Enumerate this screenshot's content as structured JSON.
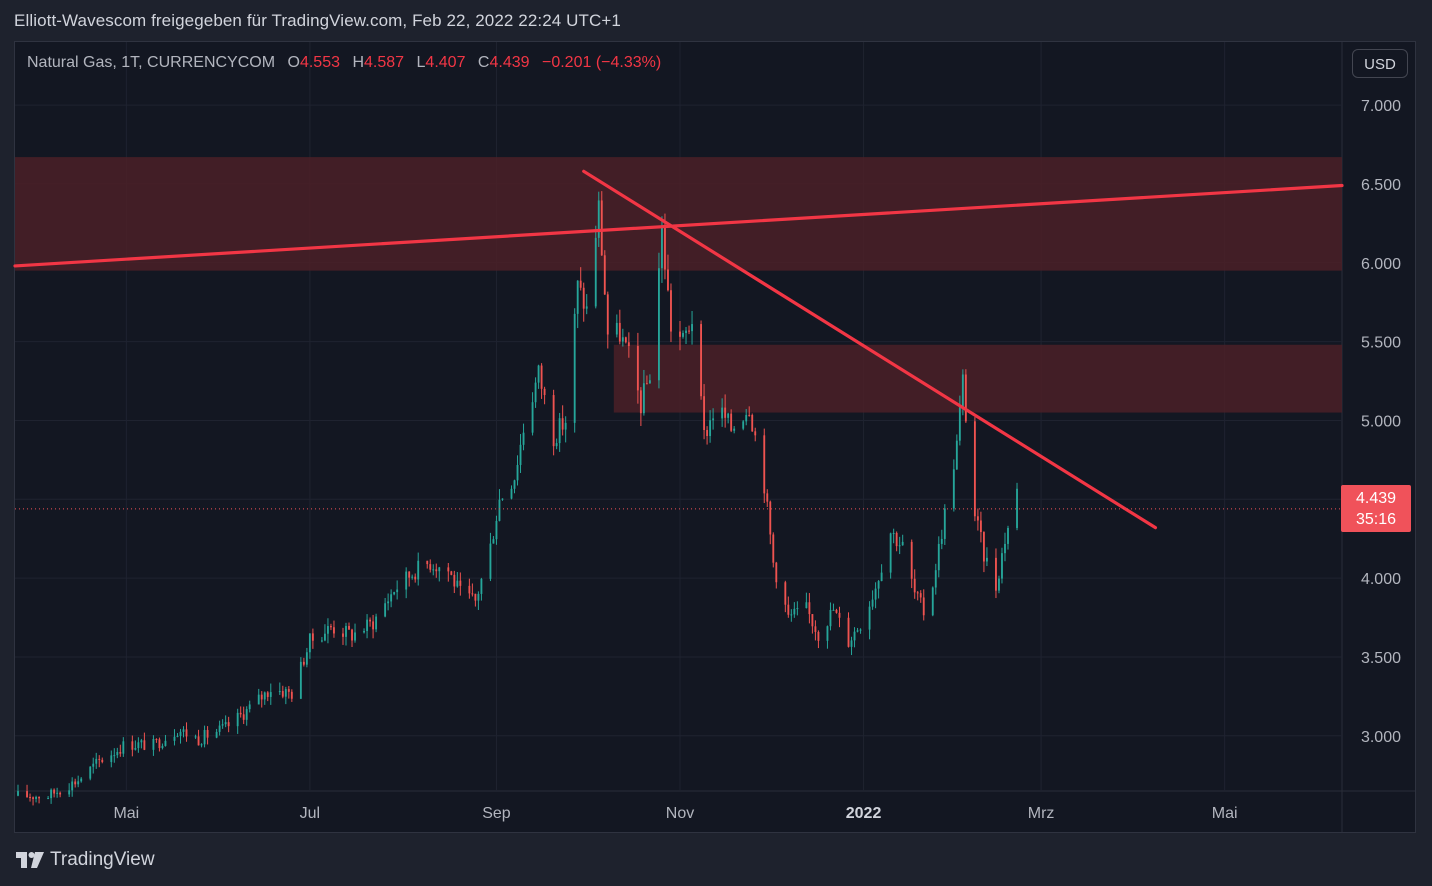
{
  "header": {
    "share_text": "Elliott-Wavescom freigegeben für TradingView.com, Feb 22, 2022 22:24 UTC+1"
  },
  "legend": {
    "symbol": "Natural Gas, 1T, CURRENCYCOM",
    "open_label": "O",
    "open": "4.553",
    "high_label": "H",
    "high": "4.587",
    "low_label": "L",
    "low": "4.407",
    "close_label": "C",
    "close": "4.439",
    "change": "−0.201 (−4.33%)"
  },
  "currency_button": "USD",
  "last_price": {
    "price": "4.439",
    "countdown": "35:16"
  },
  "footer": {
    "brand": "TradingView"
  },
  "colors": {
    "background": "#131722",
    "up": "#26a69a",
    "down": "#ef5350",
    "trendline": "#f23645",
    "zone": "#4b2027"
  },
  "chart_data": {
    "type": "candlestick",
    "y_tick_labels": [
      "7.000",
      "6.500",
      "6.000",
      "5.500",
      "5.000",
      "4.500",
      "4.000",
      "3.500",
      "3.000"
    ],
    "y_ticks": [
      7.0,
      6.5,
      6.0,
      5.5,
      5.0,
      4.5,
      4.0,
      3.5,
      3.0
    ],
    "x_tick_labels": [
      "Mai",
      "Jul",
      "Sep",
      "Nov",
      "2022",
      "Mrz",
      "Mai"
    ],
    "x_tick_dates": [
      "2021-05-01",
      "2021-07-01",
      "2021-09-01",
      "2021-11-01",
      "2022-01-01",
      "2022-03-01",
      "2022-05-01"
    ],
    "x_range": [
      "2021-03-25",
      "2022-06-09"
    ],
    "y_range": [
      2.65,
      7.4
    ],
    "grid": true,
    "last_close": 4.439,
    "zones": [
      {
        "x_start": "2021-03-25",
        "x_end": "2022-06-09",
        "y_low": 5.95,
        "y_high": 6.67
      },
      {
        "x_start": "2021-10-10",
        "x_end": "2022-06-09",
        "y_low": 5.05,
        "y_high": 5.48
      }
    ],
    "trendlines": [
      {
        "from": {
          "date": "2021-03-25",
          "value": 5.98
        },
        "to": {
          "date": "2022-06-09",
          "value": 6.49
        }
      },
      {
        "from": {
          "date": "2021-09-30",
          "value": 6.58
        },
        "to": {
          "date": "2022-04-08",
          "value": 4.32
        }
      }
    ],
    "anchor_closes": [
      [
        "2021-03-26",
        2.62
      ],
      [
        "2021-04-05",
        2.62
      ],
      [
        "2021-04-15",
        2.72
      ],
      [
        "2021-04-22",
        2.84
      ],
      [
        "2021-05-01",
        2.95
      ],
      [
        "2021-05-10",
        2.94
      ],
      [
        "2021-05-18",
        3.04
      ],
      [
        "2021-05-25",
        2.98
      ],
      [
        "2021-06-03",
        3.05
      ],
      [
        "2021-06-10",
        3.16
      ],
      [
        "2021-06-18",
        3.3
      ],
      [
        "2021-06-25",
        3.27
      ],
      [
        "2021-07-01",
        3.6
      ],
      [
        "2021-07-08",
        3.69
      ],
      [
        "2021-07-15",
        3.64
      ],
      [
        "2021-07-22",
        3.72
      ],
      [
        "2021-07-29",
        3.93
      ],
      [
        "2021-08-05",
        4.05
      ],
      [
        "2021-08-10",
        4.1
      ],
      [
        "2021-08-16",
        4.05
      ],
      [
        "2021-08-20",
        3.9
      ],
      [
        "2021-08-25",
        3.85
      ],
      [
        "2021-08-30",
        4.2
      ],
      [
        "2021-09-02",
        4.5
      ],
      [
        "2021-09-07",
        4.65
      ],
      [
        "2021-09-10",
        4.95
      ],
      [
        "2021-09-15",
        5.3
      ],
      [
        "2021-09-20",
        4.9
      ],
      [
        "2021-09-24",
        5.0
      ],
      [
        "2021-09-28",
        5.85
      ],
      [
        "2021-10-01",
        5.7
      ],
      [
        "2021-10-05",
        6.35
      ],
      [
        "2021-10-08",
        5.55
      ],
      [
        "2021-10-12",
        5.55
      ],
      [
        "2021-10-15",
        5.4
      ],
      [
        "2021-10-19",
        5.1
      ],
      [
        "2021-10-22",
        5.3
      ],
      [
        "2021-10-26",
        6.2
      ],
      [
        "2021-10-29",
        5.6
      ],
      [
        "2021-11-02",
        5.5
      ],
      [
        "2021-11-05",
        5.65
      ],
      [
        "2021-11-09",
        4.9
      ],
      [
        "2021-11-13",
        5.1
      ],
      [
        "2021-11-18",
        4.95
      ],
      [
        "2021-11-24",
        5.1
      ],
      [
        "2021-11-29",
        4.6
      ],
      [
        "2021-12-02",
        4.1
      ],
      [
        "2021-12-07",
        3.75
      ],
      [
        "2021-12-13",
        3.8
      ],
      [
        "2021-12-17",
        3.65
      ],
      [
        "2021-12-22",
        3.8
      ],
      [
        "2021-12-27",
        3.6
      ],
      [
        "2022-01-01",
        3.75
      ],
      [
        "2022-01-05",
        3.95
      ],
      [
        "2022-01-10",
        4.3
      ],
      [
        "2022-01-14",
        4.2
      ],
      [
        "2022-01-18",
        3.9
      ],
      [
        "2022-01-22",
        3.75
      ],
      [
        "2022-01-27",
        4.3
      ],
      [
        "2022-02-01",
        4.85
      ],
      [
        "2022-02-03",
        5.25
      ],
      [
        "2022-02-07",
        4.4
      ],
      [
        "2022-02-10",
        4.15
      ],
      [
        "2022-02-14",
        3.95
      ],
      [
        "2022-02-17",
        4.25
      ],
      [
        "2022-02-21",
        4.55
      ],
      [
        "2022-02-22",
        4.44
      ]
    ]
  }
}
